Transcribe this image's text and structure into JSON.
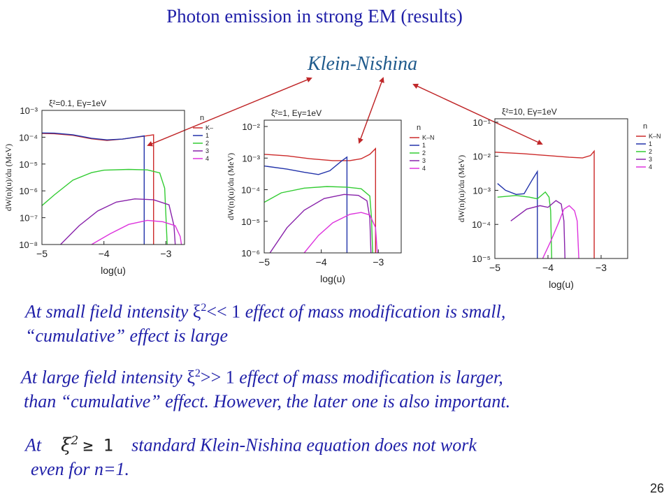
{
  "slide": {
    "title": "Photon emission in strong EM (results)",
    "kn_label": "Klein-Nishina",
    "page_number": "26",
    "paragraph1": {
      "line1_a": "At small field intensity ",
      "xi": "ξ",
      "sup": "2",
      "relation": "<< 1",
      "line1_b": " effect of mass modification is small,",
      "line2": "“cumulative” effect is large"
    },
    "paragraph2": {
      "line1_a": "At large field intensity ",
      "xi": "ξ",
      "sup": "2",
      "relation": ">> 1",
      "line1_b": " effect of mass modification is larger,",
      "line2": "than “cumulative” effect. However, the later one is also important."
    },
    "paragraph3": {
      "at": "At",
      "math_xi": "ξ",
      "math_sup": "2",
      "math_rel": "≥ 1",
      "rest": "standard Klein-Nishina equation does not work",
      "line2": "even for n=1."
    }
  },
  "colors": {
    "title": "#1f1fa8",
    "kn_label": "#1f5a8c",
    "arrow": "#c0282a",
    "series": {
      "K-N": "#cc2a2a",
      "1": "#2233aa",
      "2": "#33cc33",
      "3": "#8822aa",
      "4": "#dd33dd"
    }
  },
  "chart_data": [
    {
      "type": "line",
      "title": "ξ²=0.1, Eγ=1eV",
      "xlabel": "log(u)",
      "ylabel": "dW(n)(u)/du (MeV)",
      "xlim": [
        -5,
        -2.7
      ],
      "ylim_log10": [
        -8,
        -3
      ],
      "x_ticks": [
        -5,
        -4,
        -3
      ],
      "x_tick_labels": [
        "−5",
        "−4",
        "−3"
      ],
      "y_tick_exponents": [
        -3,
        -4,
        -5,
        -6,
        -7,
        -8
      ],
      "y_tick_labels": [
        "10⁻³",
        "10⁻⁴",
        "10⁻⁵",
        "10⁻⁶",
        "10⁻⁷",
        "10⁻⁸"
      ],
      "legend_title": "n",
      "legend_position": "right",
      "series": [
        {
          "name": "K–",
          "key": "K-N",
          "points": [
            [
              -5,
              -3.86
            ],
            [
              -4.8,
              -3.87
            ],
            [
              -4.5,
              -3.93
            ],
            [
              -4.2,
              -4.06
            ],
            [
              -3.95,
              -4.12
            ],
            [
              -3.7,
              -4.07
            ],
            [
              -3.35,
              -3.96
            ],
            [
              -3.2,
              -3.91
            ],
            [
              -3.2,
              -8
            ]
          ]
        },
        {
          "name": "1",
          "key": "1",
          "points": [
            [
              -5,
              -3.84
            ],
            [
              -4.8,
              -3.85
            ],
            [
              -4.5,
              -3.91
            ],
            [
              -4.2,
              -4.04
            ],
            [
              -3.95,
              -4.1
            ],
            [
              -3.7,
              -4.07
            ],
            [
              -3.4,
              -3.97
            ],
            [
              -3.35,
              -3.95
            ],
            [
              -3.35,
              -8
            ]
          ]
        },
        {
          "name": "2",
          "key": "2",
          "points": [
            [
              -5,
              -6.55
            ],
            [
              -4.8,
              -6.15
            ],
            [
              -4.5,
              -5.6
            ],
            [
              -4.2,
              -5.32
            ],
            [
              -4,
              -5.23
            ],
            [
              -3.6,
              -5.2
            ],
            [
              -3.3,
              -5.22
            ],
            [
              -3.1,
              -5.33
            ],
            [
              -3.02,
              -5.9
            ],
            [
              -2.98,
              -8
            ]
          ]
        },
        {
          "name": "3",
          "key": "3",
          "points": [
            [
              -4.7,
              -8
            ],
            [
              -4.4,
              -7.3
            ],
            [
              -4.1,
              -6.75
            ],
            [
              -3.8,
              -6.42
            ],
            [
              -3.5,
              -6.3
            ],
            [
              -3.2,
              -6.33
            ],
            [
              -2.95,
              -6.52
            ],
            [
              -2.87,
              -7.3
            ],
            [
              -2.85,
              -8
            ]
          ]
        },
        {
          "name": "4",
          "key": "4",
          "points": [
            [
              -4.2,
              -8
            ],
            [
              -3.9,
              -7.6
            ],
            [
              -3.6,
              -7.25
            ],
            [
              -3.3,
              -7.1
            ],
            [
              -3.05,
              -7.15
            ],
            [
              -2.85,
              -7.3
            ],
            [
              -2.77,
              -7.7
            ],
            [
              -2.75,
              -8
            ]
          ]
        }
      ]
    },
    {
      "type": "line",
      "title": "ξ²=1, Eγ=1eV",
      "xlabel": "log(u)",
      "ylabel": "dW(n)(u)/du (MeV)",
      "xlim": [
        -5,
        -2.6
      ],
      "ylim_log10": [
        -6,
        -1.8
      ],
      "x_ticks": [
        -5,
        -4,
        -3
      ],
      "x_tick_labels": [
        "−5",
        "−4",
        "−3"
      ],
      "y_tick_exponents": [
        -2,
        -3,
        -4,
        -5,
        -6
      ],
      "y_tick_labels": [
        "10⁻²",
        "10⁻³",
        "10⁻⁴",
        "10⁻⁵",
        "10⁻⁶"
      ],
      "legend_title": "n",
      "legend_position": "right",
      "series": [
        {
          "name": "K–N",
          "key": "K-N",
          "points": [
            [
              -5,
              -2.88
            ],
            [
              -4.6,
              -2.93
            ],
            [
              -4.2,
              -3.02
            ],
            [
              -3.8,
              -3.08
            ],
            [
              -3.5,
              -3.08
            ],
            [
              -3.3,
              -3.02
            ],
            [
              -3.15,
              -2.88
            ],
            [
              -3.05,
              -2.7
            ],
            [
              -3.05,
              -6
            ]
          ]
        },
        {
          "name": "1",
          "key": "1",
          "points": [
            [
              -5,
              -3.25
            ],
            [
              -4.6,
              -3.35
            ],
            [
              -4.3,
              -3.45
            ],
            [
              -4.05,
              -3.52
            ],
            [
              -3.85,
              -3.4
            ],
            [
              -3.65,
              -3.1
            ],
            [
              -3.55,
              -2.97
            ],
            [
              -3.55,
              -6
            ]
          ]
        },
        {
          "name": "2",
          "key": "2",
          "points": [
            [
              -5,
              -4.4
            ],
            [
              -4.7,
              -4.1
            ],
            [
              -4.3,
              -3.95
            ],
            [
              -3.9,
              -3.9
            ],
            [
              -3.55,
              -3.92
            ],
            [
              -3.3,
              -3.97
            ],
            [
              -3.15,
              -4.2
            ],
            [
              -3.12,
              -4.9
            ],
            [
              -3.1,
              -6
            ]
          ]
        },
        {
          "name": "3",
          "key": "3",
          "points": [
            [
              -4.9,
              -6
            ],
            [
              -4.6,
              -5.2
            ],
            [
              -4.3,
              -4.65
            ],
            [
              -3.95,
              -4.28
            ],
            [
              -3.6,
              -4.15
            ],
            [
              -3.35,
              -4.18
            ],
            [
              -3.2,
              -4.35
            ],
            [
              -3.15,
              -4.9
            ],
            [
              -3.13,
              -6
            ]
          ]
        },
        {
          "name": "4",
          "key": "4",
          "points": [
            [
              -4.3,
              -6
            ],
            [
              -4.05,
              -5.45
            ],
            [
              -3.8,
              -5.05
            ],
            [
              -3.5,
              -4.78
            ],
            [
              -3.3,
              -4.72
            ],
            [
              -3.15,
              -4.8
            ],
            [
              -3.05,
              -5.2
            ],
            [
              -3.02,
              -6
            ]
          ]
        }
      ]
    },
    {
      "type": "line",
      "title": "ξ²=10, Eγ=1eV",
      "xlabel": "log(u)",
      "ylabel": "dW(n)(u)/du (MeV)",
      "xlim": [
        -5,
        -2.5
      ],
      "ylim_log10": [
        -5,
        -0.9
      ],
      "x_ticks": [
        -5,
        -4,
        -3
      ],
      "x_tick_labels": [
        "−5",
        "−4",
        "−3"
      ],
      "y_tick_exponents": [
        -1,
        -2,
        -3,
        -4,
        -5
      ],
      "y_tick_labels": [
        "10⁻¹",
        "10⁻²",
        "10⁻³",
        "10⁻⁴",
        "10⁻⁵"
      ],
      "legend_title": "n",
      "legend_position": "right",
      "series": [
        {
          "name": "K–N",
          "key": "K-N",
          "points": [
            [
              -5,
              -1.88
            ],
            [
              -4.5,
              -1.92
            ],
            [
              -4,
              -1.98
            ],
            [
              -3.6,
              -2.03
            ],
            [
              -3.35,
              -2.05
            ],
            [
              -3.2,
              -1.98
            ],
            [
              -3.13,
              -1.85
            ],
            [
              -3.13,
              -5
            ]
          ]
        },
        {
          "name": "1",
          "key": "1",
          "points": [
            [
              -4.95,
              -2.8
            ],
            [
              -4.8,
              -3.0
            ],
            [
              -4.6,
              -3.12
            ],
            [
              -4.45,
              -3.1
            ],
            [
              -4.3,
              -2.7
            ],
            [
              -4.2,
              -2.45
            ],
            [
              -4.2,
              -5
            ]
          ]
        },
        {
          "name": "2",
          "key": "2",
          "points": [
            [
              -4.95,
              -3.2
            ],
            [
              -4.6,
              -3.15
            ],
            [
              -4.35,
              -3.2
            ],
            [
              -4.2,
              -3.25
            ],
            [
              -4.05,
              -3.05
            ],
            [
              -3.98,
              -3.2
            ],
            [
              -3.95,
              -3.6
            ],
            [
              -3.93,
              -5
            ]
          ]
        },
        {
          "name": "3",
          "key": "3",
          "points": [
            [
              -4.7,
              -3.9
            ],
            [
              -4.4,
              -3.55
            ],
            [
              -4.15,
              -3.45
            ],
            [
              -4.0,
              -3.5
            ],
            [
              -3.85,
              -3.3
            ],
            [
              -3.75,
              -3.4
            ],
            [
              -3.7,
              -3.9
            ],
            [
              -3.68,
              -5
            ]
          ]
        },
        {
          "name": "4",
          "key": "4",
          "points": [
            [
              -4.1,
              -5
            ],
            [
              -3.95,
              -4.5
            ],
            [
              -3.8,
              -3.95
            ],
            [
              -3.7,
              -3.55
            ],
            [
              -3.6,
              -3.45
            ],
            [
              -3.5,
              -3.6
            ],
            [
              -3.45,
              -3.9
            ],
            [
              -3.42,
              -5
            ]
          ]
        }
      ]
    }
  ]
}
